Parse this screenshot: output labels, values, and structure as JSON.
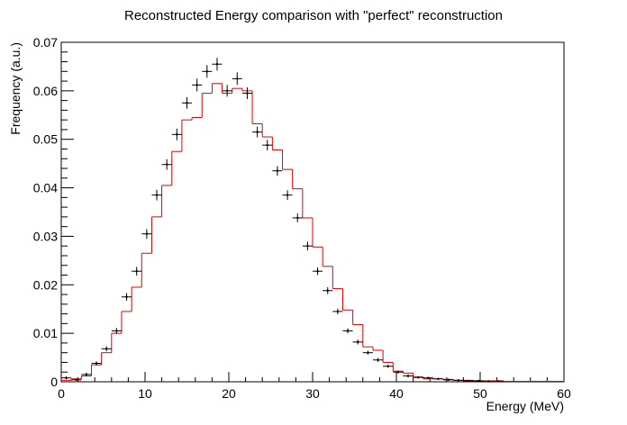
{
  "chart_data": {
    "type": "line",
    "title": "Reconstructed Energy comparison with \"perfect\" reconstruction",
    "xlabel": "Energy (MeV)",
    "ylabel": "Frequency (a.u.)",
    "xlim": [
      0,
      60
    ],
    "ylim": [
      0,
      0.07
    ],
    "x_ticks": [
      "0",
      "10",
      "20",
      "30",
      "40",
      "50",
      "60"
    ],
    "y_ticks": [
      "0",
      "0.01",
      "0.02",
      "0.03",
      "0.04",
      "0.05",
      "0.06",
      "0.07"
    ],
    "grid": false,
    "legend": "none",
    "bin_width": 1.2,
    "series": [
      {
        "kind": "step-histogram",
        "color": "#e00000",
        "bin_edges_start": 0,
        "values": [
          0.0003,
          0.0006,
          0.0012,
          0.0035,
          0.006,
          0.01,
          0.0145,
          0.0195,
          0.0265,
          0.034,
          0.0405,
          0.0475,
          0.054,
          0.0545,
          0.0595,
          0.0615,
          0.0595,
          0.0605,
          0.06,
          0.0532,
          0.0505,
          0.0478,
          0.0438,
          0.0398,
          0.0338,
          0.0278,
          0.0238,
          0.0192,
          0.0148,
          0.0118,
          0.0072,
          0.0065,
          0.004,
          0.0022,
          0.0018,
          0.001,
          0.0006,
          0.0006,
          0.0005,
          0.0003,
          0.0003,
          0.0002,
          0.0002,
          0.0002,
          0.0001,
          0.0001,
          0.0001,
          0.0001,
          0.0001,
          0.0001
        ]
      },
      {
        "kind": "points-with-errors",
        "color": "#000000",
        "x": [
          0.6,
          1.8,
          3.0,
          4.2,
          5.4,
          6.6,
          7.8,
          9.0,
          10.2,
          11.4,
          12.6,
          13.8,
          15.0,
          16.2,
          17.4,
          18.6,
          19.8,
          21.0,
          22.2,
          23.4,
          24.6,
          25.8,
          27.0,
          28.2,
          29.4,
          30.6,
          31.8,
          33.0,
          34.2,
          35.4,
          36.6,
          37.8,
          39.0,
          40.2,
          41.4,
          42.6,
          43.8,
          45.0,
          46.2,
          47.4,
          48.6,
          49.8,
          51.0,
          52.2
        ],
        "y": [
          0.0008,
          0.0004,
          0.0015,
          0.0038,
          0.0068,
          0.0105,
          0.0175,
          0.0228,
          0.0305,
          0.0385,
          0.0448,
          0.051,
          0.0575,
          0.0612,
          0.064,
          0.0655,
          0.06,
          0.0625,
          0.0595,
          0.0515,
          0.0488,
          0.0435,
          0.0385,
          0.0338,
          0.028,
          0.0228,
          0.0188,
          0.0145,
          0.0105,
          0.0082,
          0.006,
          0.0045,
          0.0032,
          0.002,
          0.0012,
          0.0009,
          0.0008,
          0.0006,
          0.0004,
          0.0003,
          0.0002,
          0.0002,
          0.0001,
          0.0001
        ],
        "yerr": [
          0.0003,
          0.0002,
          0.0004,
          0.0004,
          0.0005,
          0.0006,
          0.0008,
          0.0009,
          0.001,
          0.0011,
          0.0011,
          0.0012,
          0.0012,
          0.0013,
          0.0013,
          0.0013,
          0.0012,
          0.0013,
          0.0012,
          0.0011,
          0.0011,
          0.001,
          0.001,
          0.0009,
          0.0009,
          0.0008,
          0.0007,
          0.0006,
          0.0005,
          0.0005,
          0.0004,
          0.0004,
          0.0003,
          0.0003,
          0.0003,
          0.0002,
          0.0002,
          0.0002,
          0.0002,
          0.0002,
          0.0001,
          0.0001,
          0.0001,
          0.0001
        ]
      }
    ]
  }
}
